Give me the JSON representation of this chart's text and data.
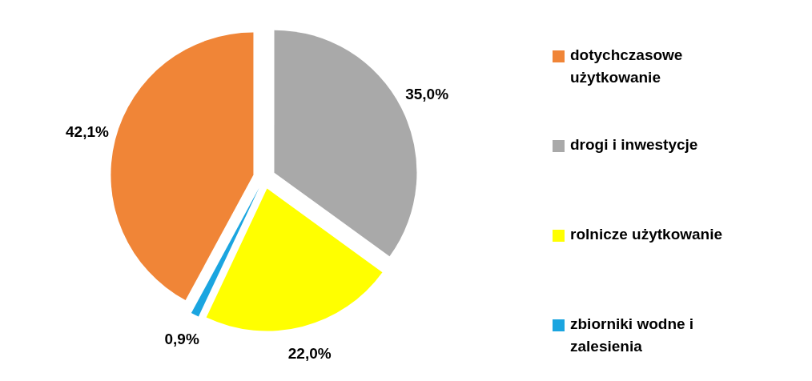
{
  "chart_data": {
    "type": "pie",
    "categories": [
      "dotychczasowe użytkowanie",
      "drogi i inwestycje",
      "rolnicze użytkowanie",
      "zbiorniki wodne i zalesienia"
    ],
    "values": [
      42.1,
      35.0,
      22.0,
      0.9
    ],
    "colors": [
      "#f08537",
      "#a9a9a9",
      "#ffff00",
      "#1aa5e0"
    ],
    "value_labels": [
      "42,1%",
      "35,0%",
      "22,0%",
      "0,9%"
    ],
    "legend": "right"
  }
}
